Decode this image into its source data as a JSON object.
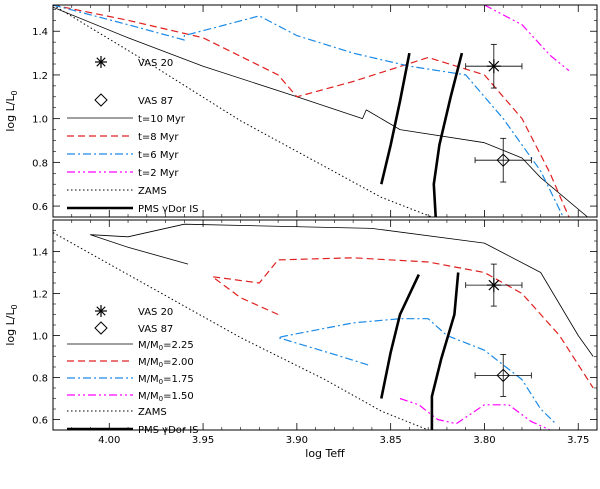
{
  "chart_data": [
    {
      "type": "line",
      "panel": "top",
      "xlabel": "",
      "ylabel": "log L/L",
      "ylabel_sub": "0",
      "xlim": [
        4.03,
        3.74
      ],
      "ylim": [
        0.55,
        1.52
      ],
      "yticks": [
        0.6,
        0.8,
        1.0,
        1.2,
        1.4
      ],
      "ytick_labels": [
        "0.6",
        "0.8",
        "1.0",
        "1.2",
        "1.4"
      ],
      "series": [
        {
          "name": "t=10 Myr",
          "style": "solid",
          "color": "#000000",
          "width": 0.8,
          "points": [
            [
              4.03,
              1.51
            ],
            [
              3.99,
              1.37
            ],
            [
              3.95,
              1.24
            ],
            [
              3.9,
              1.1
            ],
            [
              3.865,
              1.0
            ],
            [
              3.863,
              1.04
            ],
            [
              3.845,
              0.95
            ],
            [
              3.8,
              0.89
            ],
            [
              3.78,
              0.82
            ],
            [
              3.77,
              0.73
            ],
            [
              3.745,
              0.55
            ]
          ]
        },
        {
          "name": "t=8 Myr",
          "style": "dashed",
          "color": "#e02020",
          "width": 1.2,
          "points": [
            [
              4.03,
              1.52
            ],
            [
              3.99,
              1.45
            ],
            [
              3.95,
              1.37
            ],
            [
              3.91,
              1.2
            ],
            [
              3.9,
              1.1
            ],
            [
              3.87,
              1.17
            ],
            [
              3.83,
              1.28
            ],
            [
              3.8,
              1.2
            ],
            [
              3.78,
              1.0
            ],
            [
              3.765,
              0.75
            ],
            [
              3.755,
              0.55
            ]
          ]
        },
        {
          "name": "t=6 Myr",
          "style": "dashdot",
          "color": "#1a8ae6",
          "width": 1.2,
          "points": [
            [
              4.03,
              1.52
            ],
            [
              3.99,
              1.43
            ],
            [
              3.96,
              1.36
            ],
            [
              3.96,
              1.38
            ],
            [
              3.92,
              1.47
            ],
            [
              3.9,
              1.38
            ],
            [
              3.87,
              1.3
            ],
            [
              3.84,
              1.24
            ],
            [
              3.81,
              1.2
            ],
            [
              3.79,
              1.0
            ],
            [
              3.77,
              0.76
            ],
            [
              3.758,
              0.55
            ]
          ]
        },
        {
          "name": "t=2 Myr",
          "style": "dashdotdot",
          "color": "#ff00ff",
          "width": 1.2,
          "points": [
            [
              3.8,
              1.52
            ],
            [
              3.78,
              1.43
            ],
            [
              3.765,
              1.29
            ],
            [
              3.755,
              1.22
            ]
          ]
        },
        {
          "name": "ZAMS",
          "style": "dotted",
          "color": "#000000",
          "width": 1.0,
          "points": [
            [
              4.03,
              1.52
            ],
            [
              3.98,
              1.26
            ],
            [
              3.93,
              0.99
            ],
            [
              3.885,
              0.78
            ],
            [
              3.855,
              0.64
            ],
            [
              3.828,
              0.55
            ]
          ]
        },
        {
          "name": "PMS γDor IS (blue edge)",
          "style": "solid",
          "color": "#000000",
          "width": 2.6,
          "points": [
            [
              3.855,
              0.7
            ],
            [
              3.85,
              0.88
            ],
            [
              3.845,
              1.08
            ],
            [
              3.84,
              1.3
            ]
          ]
        },
        {
          "name": "PMS γDor IS (red edge)",
          "style": "solid",
          "color": "#000000",
          "width": 2.6,
          "points": [
            [
              3.826,
              0.55
            ],
            [
              3.827,
              0.7
            ],
            [
              3.824,
              0.88
            ],
            [
              3.818,
              1.1
            ],
            [
              3.812,
              1.3
            ]
          ]
        }
      ],
      "stars": [
        {
          "name": "VAS 20",
          "marker": "asterisk",
          "teff": 3.795,
          "logl": 1.24,
          "xerr": 0.015,
          "yerr": 0.1
        },
        {
          "name": "VAS 87",
          "marker": "diamond",
          "teff": 3.79,
          "logl": 0.81,
          "xerr": 0.015,
          "yerr": 0.1
        }
      ]
    },
    {
      "type": "line",
      "panel": "bottom",
      "xlabel": "log Teff",
      "ylabel": "log L/L",
      "ylabel_sub": "0",
      "xlim": [
        4.03,
        3.74
      ],
      "ylim": [
        0.55,
        1.55
      ],
      "xticks": [
        4.0,
        3.95,
        3.9,
        3.85,
        3.8,
        3.75
      ],
      "xtick_labels": [
        "4.00",
        "3.95",
        "3.90",
        "3.85",
        "3.80",
        "3.75"
      ],
      "yticks": [
        0.6,
        0.8,
        1.0,
        1.2,
        1.4
      ],
      "ytick_labels": [
        "0.6",
        "0.8",
        "1.0",
        "1.2",
        "1.4"
      ],
      "series": [
        {
          "name": "M/M0=2.25",
          "style": "solid",
          "color": "#000000",
          "width": 0.8,
          "points": [
            [
              3.958,
              1.34
            ],
            [
              3.99,
              1.42
            ],
            [
              4.01,
              1.48
            ],
            [
              3.99,
              1.47
            ],
            [
              3.96,
              1.53
            ],
            [
              3.86,
              1.51
            ],
            [
              3.8,
              1.44
            ],
            [
              3.77,
              1.3
            ],
            [
              3.75,
              1.0
            ],
            [
              3.742,
              0.9
            ]
          ]
        },
        {
          "name": "M/M0=2.00",
          "style": "dashed",
          "color": "#e02020",
          "width": 1.2,
          "points": [
            [
              3.91,
              1.1
            ],
            [
              3.93,
              1.18
            ],
            [
              3.945,
              1.28
            ],
            [
              3.92,
              1.25
            ],
            [
              3.91,
              1.36
            ],
            [
              3.87,
              1.37
            ],
            [
              3.83,
              1.35
            ],
            [
              3.8,
              1.3
            ],
            [
              3.78,
              1.2
            ],
            [
              3.76,
              1.0
            ],
            [
              3.742,
              0.75
            ]
          ]
        },
        {
          "name": "M/M0=1.75",
          "style": "dashdot",
          "color": "#1a8ae6",
          "width": 1.2,
          "points": [
            [
              3.862,
              0.86
            ],
            [
              3.88,
              0.91
            ],
            [
              3.91,
              0.99
            ],
            [
              3.905,
              1.0
            ],
            [
              3.87,
              1.06
            ],
            [
              3.845,
              1.08
            ],
            [
              3.83,
              1.08
            ],
            [
              3.82,
              1.0
            ],
            [
              3.8,
              0.93
            ],
            [
              3.78,
              0.79
            ],
            [
              3.77,
              0.65
            ],
            [
              3.762,
              0.58
            ]
          ]
        },
        {
          "name": "M/M0=1.50",
          "style": "dashdotdot",
          "color": "#ff00ff",
          "width": 1.2,
          "points": [
            [
              3.845,
              0.7
            ],
            [
              3.835,
              0.67
            ],
            [
              3.825,
              0.6
            ],
            [
              3.815,
              0.58
            ],
            [
              3.8,
              0.67
            ],
            [
              3.787,
              0.67
            ],
            [
              3.775,
              0.59
            ],
            [
              3.765,
              0.55
            ]
          ]
        },
        {
          "name": "ZAMS",
          "style": "dotted",
          "color": "#000000",
          "width": 1.0,
          "points": [
            [
              4.03,
              1.49
            ],
            [
              3.98,
              1.24
            ],
            [
              3.93,
              0.99
            ],
            [
              3.885,
              0.79
            ],
            [
              3.855,
              0.64
            ],
            [
              3.83,
              0.55
            ]
          ]
        },
        {
          "name": "PMS γDor IS (blue edge)",
          "style": "solid",
          "color": "#000000",
          "width": 2.6,
          "points": [
            [
              3.855,
              0.7
            ],
            [
              3.85,
              0.92
            ],
            [
              3.845,
              1.1
            ],
            [
              3.835,
              1.29
            ]
          ]
        },
        {
          "name": "PMS γDor IS (red edge)",
          "style": "solid",
          "color": "#000000",
          "width": 2.6,
          "points": [
            [
              3.828,
              0.55
            ],
            [
              3.828,
              0.71
            ],
            [
              3.823,
              0.89
            ],
            [
              3.816,
              1.1
            ],
            [
              3.814,
              1.3
            ]
          ]
        }
      ],
      "stars": [
        {
          "name": "VAS 20",
          "marker": "asterisk",
          "teff": 3.795,
          "logl": 1.24,
          "xerr": 0.015,
          "yerr": 0.1
        },
        {
          "name": "VAS 87",
          "marker": "diamond",
          "teff": 3.79,
          "logl": 0.81,
          "xerr": 0.015,
          "yerr": 0.1
        }
      ]
    }
  ],
  "legends": {
    "top": [
      "VAS 20",
      "VAS 87",
      "t=10 Myr",
      "t=8 Myr",
      "t=6 Myr",
      "t=2 Myr",
      "ZAMS",
      "PMS γDor IS"
    ],
    "bottom": [
      "VAS 20",
      "VAS 87",
      "M/M0=2.25",
      "M/M0=2.00",
      "M/M0=1.75",
      "M/M0=1.50",
      "ZAMS",
      "PMS γDor IS"
    ]
  }
}
